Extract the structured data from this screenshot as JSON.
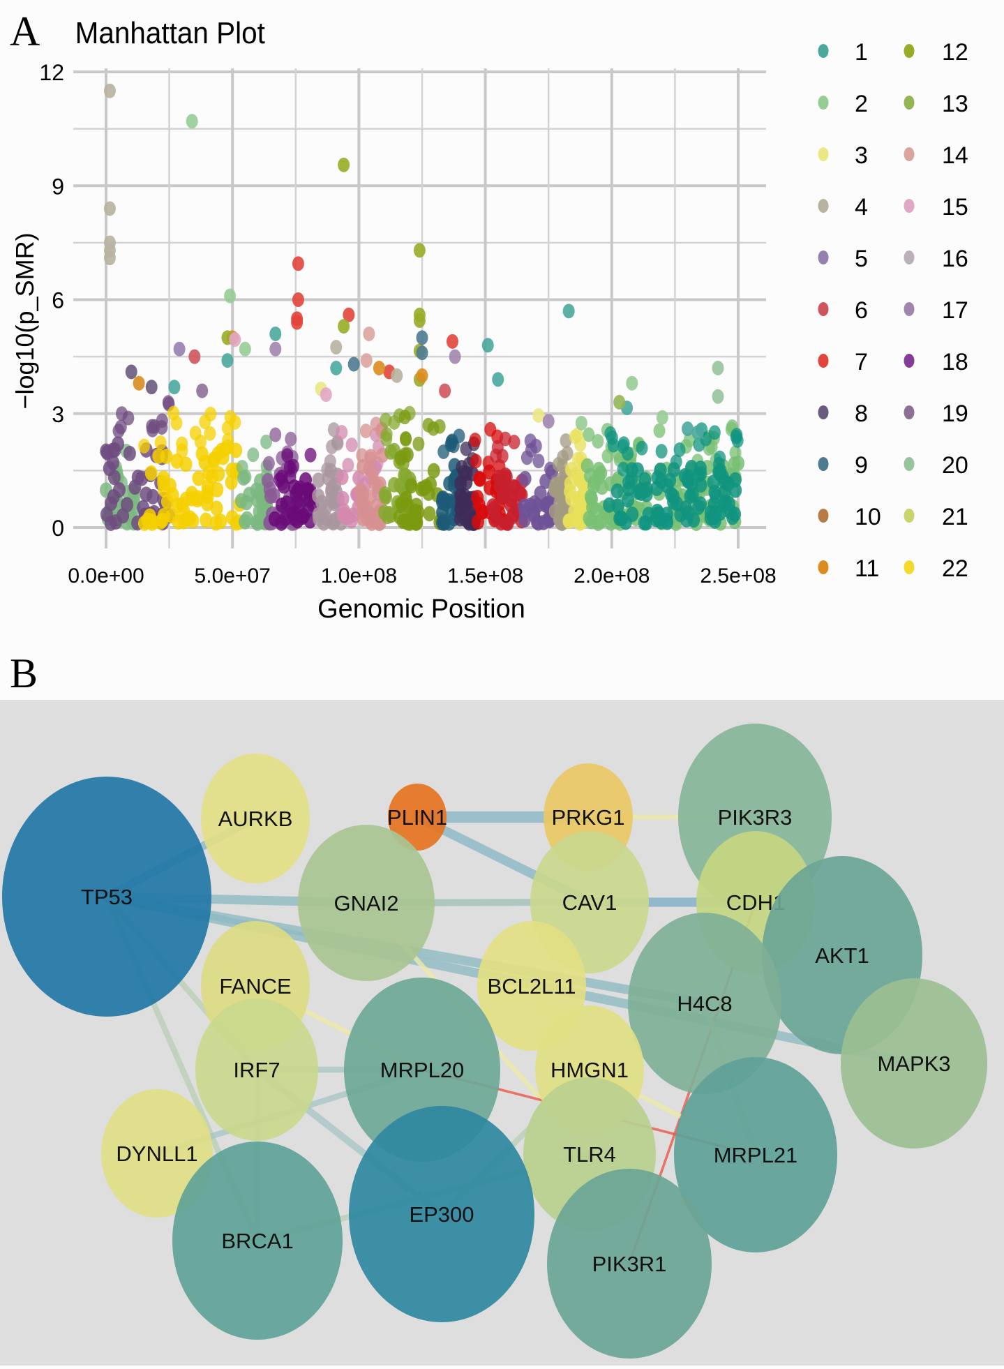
{
  "panels": {
    "a_letter": "A",
    "b_letter": "B"
  },
  "chart_data": [
    {
      "type": "scatter",
      "title": "Manhattan Plot",
      "xlabel": "Genomic Position",
      "ylabel": "−log10(p_SMR)",
      "xlim": [
        0,
        250000000
      ],
      "ylim": [
        0,
        12
      ],
      "x_ticks": [
        0,
        50000000,
        100000000,
        150000000,
        200000000,
        250000000
      ],
      "x_tick_labels": [
        "0.0e+00",
        "5.0e+07",
        "1.0e+08",
        "1.5e+08",
        "2.0e+08",
        "2.5e+08"
      ],
      "y_ticks": [
        0,
        3,
        6,
        9,
        12
      ],
      "y_tick_labels": [
        "0",
        "3",
        "6",
        "9",
        "12"
      ],
      "grid": true,
      "legend_placement": "right",
      "legend": [
        {
          "label": "1",
          "color": "#4aa99c"
        },
        {
          "label": "2",
          "color": "#97cc95"
        },
        {
          "label": "3",
          "color": "#ebe784"
        },
        {
          "label": "4",
          "color": "#b8b39f"
        },
        {
          "label": "5",
          "color": "#9680b0"
        },
        {
          "label": "6",
          "color": "#d0545c"
        },
        {
          "label": "7",
          "color": "#e2443a"
        },
        {
          "label": "8",
          "color": "#6a5a7e"
        },
        {
          "label": "9",
          "color": "#4f7b91"
        },
        {
          "label": "10",
          "color": "#b97b45"
        },
        {
          "label": "11",
          "color": "#dc8c1e"
        },
        {
          "label": "12",
          "color": "#99ac27"
        },
        {
          "label": "13",
          "color": "#93b653"
        },
        {
          "label": "14",
          "color": "#dba49f"
        },
        {
          "label": "15",
          "color": "#e0a6c4"
        },
        {
          "label": "16",
          "color": "#bcb0b8"
        },
        {
          "label": "17",
          "color": "#a086ad"
        },
        {
          "label": "18",
          "color": "#843c94"
        },
        {
          "label": "19",
          "color": "#8c7096"
        },
        {
          "label": "20",
          "color": "#96c49b"
        },
        {
          "label": "21",
          "color": "#c9d46b"
        },
        {
          "label": "22",
          "color": "#f5d82e"
        }
      ],
      "bands": [
        {
          "chr": "20",
          "x_range": [
            0,
            12000000
          ],
          "color": "#7bb880",
          "max_dense": 1.0
        },
        {
          "chr": "8",
          "x_range": [
            0,
            25000000
          ],
          "color": "#6f4c80",
          "max_dense": 2.2
        },
        {
          "chr": "22",
          "x_range": [
            15000000,
            53000000
          ],
          "color": "#f5d000",
          "max_dense": 2.0
        },
        {
          "chr": "20",
          "x_range": [
            53000000,
            64000000
          ],
          "color": "#7bb880",
          "max_dense": 1.3
        },
        {
          "chr": "19",
          "x_range": [
            64000000,
            76000000
          ],
          "color": "#8a5a96",
          "max_dense": 1.5
        },
        {
          "chr": "18",
          "x_range": [
            66000000,
            83000000
          ],
          "color": "#6a0a78",
          "max_dense": 1.2
        },
        {
          "chr": "16",
          "x_range": [
            83000000,
            93000000
          ],
          "color": "#a9969f",
          "max_dense": 1.5
        },
        {
          "chr": "15",
          "x_range": [
            93000000,
            108000000
          ],
          "color": "#d38aaf",
          "max_dense": 1.6
        },
        {
          "chr": "14",
          "x_range": [
            100000000,
            110000000
          ],
          "color": "#d79090",
          "max_dense": 1.8
        },
        {
          "chr": "13",
          "x_range": [
            110000000,
            121000000
          ],
          "color": "#86a830",
          "max_dense": 2.0
        },
        {
          "chr": "12",
          "x_range": [
            116000000,
            133000000
          ],
          "color": "#7a9a10",
          "max_dense": 1.9
        },
        {
          "chr": "9",
          "x_range": [
            133000000,
            140000000
          ],
          "color": "#1c5b78",
          "max_dense": 1.6
        },
        {
          "chr": "8",
          "x_range": [
            140000000,
            146000000
          ],
          "color": "#3e2c58",
          "max_dense": 1.4
        },
        {
          "chr": "7",
          "x_range": [
            146000000,
            159000000
          ],
          "color": "#d80a0a",
          "max_dense": 1.5
        },
        {
          "chr": "6",
          "x_range": [
            153000000,
            165000000
          ],
          "color": "#c8202e",
          "max_dense": 1.3
        },
        {
          "chr": "5",
          "x_range": [
            165000000,
            177000000
          ],
          "color": "#6f5296",
          "max_dense": 1.4
        },
        {
          "chr": "4",
          "x_range": [
            177000000,
            183000000
          ],
          "color": "#a39a82",
          "max_dense": 1.2
        },
        {
          "chr": "3",
          "x_range": [
            183000000,
            190000000
          ],
          "color": "#e8e05a",
          "max_dense": 1.5
        },
        {
          "chr": "2",
          "x_range": [
            190000000,
            250000000
          ],
          "color": "#78bf73",
          "max_dense": 1.6
        },
        {
          "chr": "1",
          "x_range": [
            199000000,
            250000000
          ],
          "color": "#10947f",
          "max_dense": 1.5
        }
      ],
      "points": [
        {
          "chr": "4",
          "x": 1500000,
          "y": 11.5
        },
        {
          "chr": "4",
          "x": 1500000,
          "y": 8.4
        },
        {
          "chr": "4",
          "x": 1500000,
          "y": 7.5
        },
        {
          "chr": "4",
          "x": 1500000,
          "y": 7.3
        },
        {
          "chr": "4",
          "x": 1500000,
          "y": 7.1
        },
        {
          "chr": "2",
          "x": 34000000,
          "y": 10.7
        },
        {
          "chr": "12",
          "x": 94000000,
          "y": 9.55
        },
        {
          "chr": "12",
          "x": 124000000,
          "y": 7.3
        },
        {
          "chr": "12",
          "x": 124000000,
          "y": 5.6
        },
        {
          "chr": "12",
          "x": 124000000,
          "y": 5.45
        },
        {
          "chr": "12",
          "x": 124000000,
          "y": 4.65
        },
        {
          "chr": "12",
          "x": 124000000,
          "y": 3.9
        },
        {
          "chr": "9",
          "x": 125000000,
          "y": 5.0
        },
        {
          "chr": "9",
          "x": 125000000,
          "y": 4.6
        },
        {
          "chr": "11",
          "x": 125000000,
          "y": 4.0
        },
        {
          "chr": "2",
          "x": 49000000,
          "y": 6.1
        },
        {
          "chr": "7",
          "x": 76000000,
          "y": 6.95
        },
        {
          "chr": "7",
          "x": 76000000,
          "y": 6.0
        },
        {
          "chr": "7",
          "x": 75500000,
          "y": 5.5
        },
        {
          "chr": "7",
          "x": 75500000,
          "y": 5.4
        },
        {
          "chr": "7",
          "x": 96000000,
          "y": 5.6
        },
        {
          "chr": "12",
          "x": 94000000,
          "y": 5.3
        },
        {
          "chr": "1",
          "x": 183000000,
          "y": 5.7
        },
        {
          "chr": "1",
          "x": 151000000,
          "y": 4.8
        },
        {
          "chr": "1",
          "x": 155000000,
          "y": 3.9
        },
        {
          "chr": "7",
          "x": 137000000,
          "y": 4.9
        },
        {
          "chr": "17",
          "x": 138000000,
          "y": 4.5
        },
        {
          "chr": "6",
          "x": 134000000,
          "y": 3.6
        },
        {
          "chr": "1",
          "x": 67000000,
          "y": 5.1
        },
        {
          "chr": "17",
          "x": 67000000,
          "y": 4.7
        },
        {
          "chr": "11",
          "x": 50000000,
          "y": 5.0
        },
        {
          "chr": "12",
          "x": 48000000,
          "y": 5.0
        },
        {
          "chr": "15",
          "x": 51000000,
          "y": 4.95
        },
        {
          "chr": "2",
          "x": 55000000,
          "y": 4.7
        },
        {
          "chr": "1",
          "x": 48000000,
          "y": 4.4
        },
        {
          "chr": "5",
          "x": 29000000,
          "y": 4.7
        },
        {
          "chr": "6",
          "x": 35000000,
          "y": 4.5
        },
        {
          "chr": "4",
          "x": 91000000,
          "y": 4.75
        },
        {
          "chr": "1",
          "x": 91000000,
          "y": 4.2
        },
        {
          "chr": "9",
          "x": 98000000,
          "y": 4.3
        },
        {
          "chr": "14",
          "x": 104000000,
          "y": 5.1
        },
        {
          "chr": "14",
          "x": 103000000,
          "y": 4.4
        },
        {
          "chr": "7",
          "x": 112000000,
          "y": 4.1
        },
        {
          "chr": "4",
          "x": 115000000,
          "y": 4.0
        },
        {
          "chr": "11",
          "x": 108000000,
          "y": 4.2
        },
        {
          "chr": "20",
          "x": 242000000,
          "y": 4.2
        },
        {
          "chr": "20",
          "x": 242000000,
          "y": 3.45
        },
        {
          "chr": "2",
          "x": 208000000,
          "y": 3.8
        },
        {
          "chr": "1",
          "x": 206000000,
          "y": 3.15
        },
        {
          "chr": "13",
          "x": 203000000,
          "y": 3.3
        },
        {
          "chr": "2",
          "x": 220000000,
          "y": 2.9
        },
        {
          "chr": "2",
          "x": 188000000,
          "y": 2.75
        },
        {
          "chr": "3",
          "x": 171000000,
          "y": 2.95
        },
        {
          "chr": "17",
          "x": 175000000,
          "y": 2.8
        },
        {
          "chr": "8",
          "x": 10000000,
          "y": 4.1
        },
        {
          "chr": "11",
          "x": 13000000,
          "y": 3.8
        },
        {
          "chr": "8",
          "x": 18000000,
          "y": 3.7
        },
        {
          "chr": "1",
          "x": 27000000,
          "y": 3.7
        },
        {
          "chr": "19",
          "x": 38000000,
          "y": 3.6
        },
        {
          "chr": "3",
          "x": 85000000,
          "y": 3.65
        },
        {
          "chr": "15",
          "x": 87000000,
          "y": 3.5
        },
        {
          "chr": "1",
          "x": 230000000,
          "y": 2.6
        },
        {
          "chr": "1",
          "x": 234000000,
          "y": 2.5
        }
      ]
    },
    {
      "type": "network",
      "title": "",
      "nodes": [
        {
          "id": "TP53",
          "color": "#2277a6",
          "size": 1.0
        },
        {
          "id": "AURKB",
          "color": "#e2df86",
          "size": 0.5
        },
        {
          "id": "PLIN1",
          "color": "#e6731f",
          "size": 0.28
        },
        {
          "id": "PRKG1",
          "color": "#eac864",
          "size": 0.38
        },
        {
          "id": "PIK3R3",
          "color": "#85b598",
          "size": 0.63
        },
        {
          "id": "GNAI2",
          "color": "#a8c492",
          "size": 0.63
        },
        {
          "id": "CAV1",
          "color": "#c9d88d",
          "size": 0.57
        },
        {
          "id": "CDH1",
          "color": "#c4d681",
          "size": 0.57
        },
        {
          "id": "AKT1",
          "color": "#6aa596",
          "size": 0.78
        },
        {
          "id": "FANCE",
          "color": "#dcdb82",
          "size": 0.52
        },
        {
          "id": "BCL2L11",
          "color": "#e2e083",
          "size": 0.52
        },
        {
          "id": "H4C8",
          "color": "#7fb096",
          "size": 0.73
        },
        {
          "id": "MAPK3",
          "color": "#9bbf92",
          "size": 0.7
        },
        {
          "id": "IRF7",
          "color": "#c9d88d",
          "size": 0.52
        },
        {
          "id": "MRPL20",
          "color": "#6ea896",
          "size": 0.68
        },
        {
          "id": "HMGN1",
          "color": "#dfdf84",
          "size": 0.48
        },
        {
          "id": "DYNLL1",
          "color": "#e0de86",
          "size": 0.43
        },
        {
          "id": "TLR4",
          "color": "#b9d08e",
          "size": 0.57
        },
        {
          "id": "MRPL21",
          "color": "#5ea198",
          "size": 0.73
        },
        {
          "id": "BRCA1",
          "color": "#5fa298",
          "size": 0.82
        },
        {
          "id": "EP300",
          "color": "#2f88a0",
          "size": 0.9
        },
        {
          "id": "PIK3R1",
          "color": "#6aa596",
          "size": 0.78
        }
      ],
      "edges": [
        {
          "source": "PLIN1",
          "target": "PRKG1",
          "color": "#89b8c6",
          "weight": 0.9
        },
        {
          "source": "PLIN1",
          "target": "CAV1",
          "color": "#89b8c6",
          "weight": 0.7
        },
        {
          "source": "TP53",
          "target": "AURKB",
          "color": "#89b8c6",
          "weight": 0.6
        },
        {
          "source": "TP53",
          "target": "GNAI2",
          "color": "#8fb9c2",
          "weight": 0.7
        },
        {
          "source": "TP53",
          "target": "H4C8",
          "color": "#8fb9c2",
          "weight": 0.7
        },
        {
          "source": "TP53",
          "target": "MAPK3",
          "color": "#8fb9c2",
          "weight": 0.7
        },
        {
          "source": "TP53",
          "target": "IRF7",
          "color": "#b9d0b6",
          "weight": 0.4
        },
        {
          "source": "TP53",
          "target": "BRCA1",
          "color": "#b9d0b6",
          "weight": 0.4
        },
        {
          "source": "CAV1",
          "target": "CDH1",
          "color": "#7fadc6",
          "weight": 0.7
        },
        {
          "source": "CAV1",
          "target": "GNAI2",
          "color": "#ece9a8",
          "weight": 0.3
        },
        {
          "source": "PRKG1",
          "target": "PIK3R3",
          "color": "#ece9a8",
          "weight": 0.3
        },
        {
          "source": "GNAI2",
          "target": "CAV1",
          "color": "#9fc0c0",
          "weight": 0.5
        },
        {
          "source": "GNAI2",
          "target": "TLR4",
          "color": "#ece9a8",
          "weight": 0.3
        },
        {
          "source": "FANCE",
          "target": "MRPL20",
          "color": "#ece9a8",
          "weight": 0.3
        },
        {
          "source": "IRF7",
          "target": "EP300",
          "color": "#a8c6c4",
          "weight": 0.5
        },
        {
          "source": "IRF7",
          "target": "MRPL20",
          "color": "#a8c6c4",
          "weight": 0.4
        },
        {
          "source": "IRF7",
          "target": "BRCA1",
          "color": "#c3d7b2",
          "weight": 0.4
        },
        {
          "source": "DYNLL1",
          "target": "MRPL20",
          "color": "#a8c6c4",
          "weight": 0.4
        },
        {
          "source": "BRCA1",
          "target": "TLR4",
          "color": "#b9d0b6",
          "weight": 0.4
        },
        {
          "source": "EP300",
          "target": "HMGN1",
          "color": "#b9d0b6",
          "weight": 0.4
        },
        {
          "source": "MRPL20",
          "target": "MRPL21",
          "color": "#e8584a",
          "weight": 0.1
        },
        {
          "source": "CDH1",
          "target": "PIK3R1",
          "color": "#e8584a",
          "weight": 0.1
        },
        {
          "source": "HMGN1",
          "target": "MRPL21",
          "color": "#ece9a8",
          "weight": 0.3
        },
        {
          "source": "BCL2L11",
          "target": "HMGN1",
          "color": "#d2dcb0",
          "weight": 0.4
        },
        {
          "source": "H4C8",
          "target": "MRPL21",
          "color": "#d2dcb0",
          "weight": 0.4
        }
      ]
    }
  ]
}
